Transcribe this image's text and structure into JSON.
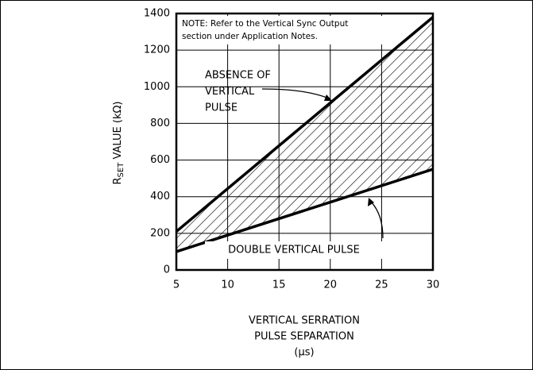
{
  "chart_data": {
    "type": "line",
    "x": [
      5,
      30
    ],
    "series": [
      {
        "name": "ABSENCE OF VERTICAL PULSE",
        "color": "#000000",
        "values": [
          210,
          1380
        ]
      },
      {
        "name": "DOUBLE VERTICAL PULSE",
        "color": "#000000",
        "values": [
          100,
          550
        ]
      }
    ],
    "fill_between": true,
    "xlim": [
      5,
      30
    ],
    "xticks": [
      5,
      10,
      15,
      20,
      25,
      30
    ],
    "ylim": [
      0,
      1400
    ],
    "yticks": [
      0,
      200,
      400,
      600,
      800,
      1000,
      1200,
      1400
    ],
    "grid": true,
    "y_label": [
      "R",
      "SET",
      " VALUE (kΩ)"
    ],
    "x_label": [
      "VERTICAL SERRATION",
      "PULSE SEPARATION",
      "(µs)"
    ],
    "note": [
      "NOTE: Refer to the Vertical Sync Output",
      "section under Application Notes."
    ],
    "upper_label": [
      "ABSENCE OF",
      "VERTICAL",
      "PULSE"
    ],
    "lower_label": "DOUBLE VERTICAL PULSE"
  }
}
